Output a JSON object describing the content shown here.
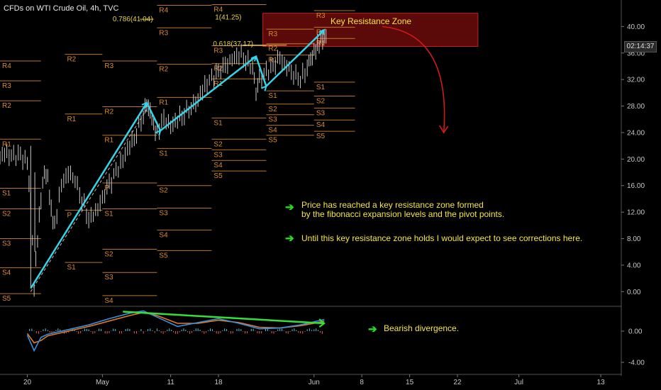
{
  "title": "CFDs on WTI Crude Oil, 4h, TVC",
  "annotations": {
    "zone_label": "Key Resistance Zone",
    "note1_line1": "Price has reached a key resistance zone formed",
    "note1_line2": "by the fibonacci expansion levels and the pivot points.",
    "note2": "Until this key resistance zone holds I would expect to see corrections here.",
    "note3": "Bearish divergence.",
    "fib_labels": [
      "0.786(41.04)",
      "1(41.25)",
      "0.618(37.17)"
    ]
  },
  "colors": {
    "background": "#000000",
    "pivot": "#d98c2e",
    "trend": "#37d3e6",
    "zone_fill": "#6b0a0a",
    "zone_border": "#c42020",
    "curve": "#d11a1a",
    "divergence": "#33e03a",
    "note_text": "#f5e642",
    "macd": "#3a8fd8",
    "signal": "#e07a2a"
  },
  "current_price": "02:14:37",
  "chart_data": [
    {
      "type": "line",
      "title": "CFDs on WTI Crude Oil, 4h, TVC",
      "y_ticks": [
        "40.00",
        "36.00",
        "32.00",
        "28.00",
        "24.00",
        "20.00",
        "16.00",
        "12.00",
        "8.00",
        "4.00",
        "0.00"
      ],
      "ylim": [
        -2,
        44
      ],
      "x_ticks": [
        {
          "label": "20",
          "x": 0
        },
        {
          "label": "May",
          "x": 11
        },
        {
          "label": "11",
          "x": 21
        },
        {
          "label": "18",
          "x": 28
        },
        {
          "label": "Jun",
          "x": 42
        },
        {
          "label": "8",
          "x": 49
        },
        {
          "label": "15",
          "x": 56
        },
        {
          "label": "22",
          "x": 63
        },
        {
          "label": "Jul",
          "x": 72
        },
        {
          "label": "13",
          "x": 84
        }
      ],
      "xlim": [
        -4,
        87
      ],
      "price_series": {
        "name": "",
        "x": [
          -4,
          -3,
          -2,
          -1,
          0,
          0.5,
          1,
          1.5,
          2,
          2.5,
          3,
          3.5,
          4,
          5,
          6,
          7,
          8,
          9,
          10,
          11,
          12,
          13,
          14,
          15,
          16,
          17,
          17.5,
          18,
          18.5,
          19,
          20,
          21,
          22,
          23,
          24,
          25,
          26,
          27,
          28,
          29,
          30,
          31,
          32,
          33,
          33.5,
          34,
          35,
          36,
          37,
          38,
          39,
          40,
          41,
          41.5,
          42,
          42.5,
          43,
          43.5,
          44
        ],
        "y": [
          20.5,
          20.7,
          20.3,
          20.6,
          19,
          14,
          1,
          8,
          14,
          18,
          17,
          12,
          10,
          16,
          18,
          17,
          14,
          11,
          12,
          14,
          16,
          18,
          20,
          22,
          24,
          27,
          28,
          27,
          25,
          24,
          26,
          25,
          26,
          27,
          28,
          29,
          31,
          32,
          33,
          34,
          35,
          36,
          35,
          34,
          30,
          32,
          33,
          34,
          35,
          34,
          33,
          32,
          34,
          35,
          36,
          37,
          38,
          38.5,
          38.3
        ]
      },
      "trend_lines": [
        {
          "name": "",
          "x": [
            0.5,
            17.5
          ],
          "y": [
            0.5,
            28.5
          ]
        },
        {
          "name": "",
          "x": [
            17.5,
            19.5
          ],
          "y": [
            28.5,
            24.3
          ]
        },
        {
          "name": "",
          "x": [
            19.5,
            33.5
          ],
          "y": [
            24.3,
            35.5
          ]
        },
        {
          "name": "",
          "x": [
            33.5,
            35
          ],
          "y": [
            35.5,
            31
          ]
        },
        {
          "name": "",
          "x": [
            35,
            43.5
          ],
          "y": [
            31,
            39.5
          ]
        }
      ],
      "resistance_zone": {
        "x": [
          34.5,
          66
        ],
        "y": [
          37,
          42
        ]
      },
      "projection_curve": {
        "x": [
          52,
          61
        ],
        "y": [
          40,
          24
        ]
      },
      "pivot_sets": [
        {
          "x": [
            -4,
            2
          ],
          "levels": [
            {
              "label": "R4",
              "y": 34.8
            },
            {
              "label": "R3",
              "y": 31.8
            },
            {
              "label": "R2",
              "y": 28.8
            },
            {
              "label": "R1",
              "y": 23
            },
            {
              "label": "S1",
              "y": 15.6
            },
            {
              "label": "S2",
              "y": 12.5
            },
            {
              "label": "S3",
              "y": 8
            },
            {
              "label": "S4",
              "y": 3.6
            },
            {
              "label": "S5",
              "y": -0.3
            }
          ]
        },
        {
          "x": [
            5.5,
            11
          ],
          "levels": [
            {
              "label": "R2",
              "y": 35.8
            },
            {
              "label": "R1",
              "y": 26.8
            },
            {
              "label": "P",
              "y": 12.3
            },
            {
              "label": "S1",
              "y": 4.4
            }
          ]
        },
        {
          "x": [
            11,
            19
          ],
          "levels": [
            {
              "label": "R3",
              "y": 34.8
            },
            {
              "label": "R2",
              "y": 27.9
            },
            {
              "label": "R1",
              "y": 23.6
            },
            {
              "label": "P",
              "y": 16.4
            },
            {
              "label": "S1",
              "y": 12.5
            },
            {
              "label": "S2",
              "y": 6.4
            },
            {
              "label": "S3",
              "y": 2.9
            },
            {
              "label": "S4",
              "y": -0.6
            }
          ]
        },
        {
          "x": [
            19,
            27
          ],
          "levels": [
            {
              "label": "R4",
              "y": 43.2
            },
            {
              "label": "R3",
              "y": 39.8
            },
            {
              "label": "R2",
              "y": 34.3
            },
            {
              "label": "R1",
              "y": 29.3
            },
            {
              "label": "S1",
              "y": 21.6
            },
            {
              "label": "S2",
              "y": 16.0
            },
            {
              "label": "S3",
              "y": 12.6
            },
            {
              "label": "S4",
              "y": 9.3
            },
            {
              "label": "S5",
              "y": 6.2
            }
          ]
        },
        {
          "x": [
            27,
            35
          ],
          "levels": [
            {
              "label": "R4",
              "y": 43.3
            },
            {
              "label": "R3",
              "y": 37.1
            },
            {
              "label": "R2",
              "y": 34.4
            },
            {
              "label": "R1",
              "y": 32.1
            },
            {
              "label": "S1",
              "y": 26.2
            },
            {
              "label": "S2",
              "y": 23.0
            },
            {
              "label": "S3",
              "y": 21.4
            },
            {
              "label": "S4",
              "y": 19.8
            },
            {
              "label": "S5",
              "y": 18.2
            }
          ]
        },
        {
          "x": [
            35,
            42
          ],
          "levels": [
            {
              "label": "R3",
              "y": 39.6
            },
            {
              "label": "R2",
              "y": 37.4
            },
            {
              "label": "R1",
              "y": 35.7
            },
            {
              "label": "S1",
              "y": 30.3
            },
            {
              "label": "S2",
              "y": 28.3
            },
            {
              "label": "S3",
              "y": 26.7
            },
            {
              "label": "S4",
              "y": 25.1
            },
            {
              "label": "S5",
              "y": 23.6
            }
          ]
        },
        {
          "x": [
            42,
            48
          ],
          "levels": [
            {
              "label": "R3",
              "y": 42.4
            },
            {
              "label": "R2",
              "y": 39.9
            },
            {
              "label": "R1",
              "y": 38.2
            },
            {
              "label": "S1",
              "y": 31.6
            },
            {
              "label": "S2",
              "y": 29.5
            },
            {
              "label": "S3",
              "y": 27.7
            },
            {
              "label": "S4",
              "y": 25.9
            },
            {
              "label": "S5",
              "y": 24.2
            }
          ]
        }
      ]
    },
    {
      "type": "line",
      "title": "",
      "y_ticks": [
        "0.00",
        "-4.00"
      ],
      "ylim": [
        -5,
        3
      ],
      "macd": {
        "name": "",
        "x": [
          0,
          1,
          2,
          3,
          6,
          9,
          12,
          15,
          17,
          19,
          22,
          25,
          28,
          31,
          34,
          37,
          40,
          42,
          43.5
        ],
        "y": [
          -0.5,
          -2.5,
          -0.8,
          -0.4,
          0.2,
          0.8,
          1.6,
          2.3,
          2.6,
          1.8,
          0.6,
          1.1,
          1.6,
          1.0,
          0.3,
          0.4,
          0.8,
          1.2,
          1.5
        ]
      },
      "signal": {
        "name": "",
        "x": [
          0,
          1,
          2,
          3,
          6,
          9,
          12,
          15,
          17,
          19,
          22,
          25,
          28,
          31,
          34,
          37,
          40,
          42,
          43.5
        ],
        "y": [
          -0.3,
          -1.5,
          -1.2,
          -0.6,
          0,
          0.6,
          1.3,
          2.0,
          2.4,
          2.0,
          1.0,
          1.0,
          1.4,
          1.1,
          0.5,
          0.4,
          0.7,
          1.0,
          1.3
        ]
      },
      "divergence_line": {
        "x": [
          14,
          43.5
        ],
        "y": [
          2.5,
          1.0
        ]
      }
    }
  ]
}
